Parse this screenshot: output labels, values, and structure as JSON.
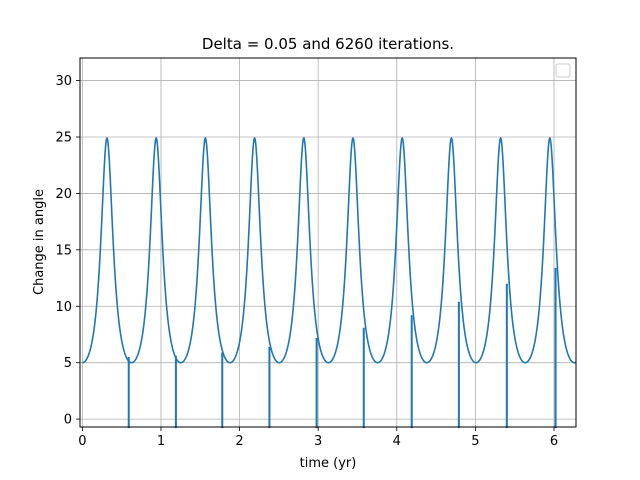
{
  "chart_data": {
    "type": "line",
    "title": "Delta = 0.05 and 6260 iterations.",
    "xlabel": "time (yr)",
    "ylabel": "Change in angle",
    "xlim": [
      -0.03,
      6.28
    ],
    "ylim": [
      -0.7,
      32
    ],
    "x_ticks": [
      0,
      1,
      2,
      3,
      4,
      5,
      6
    ],
    "y_ticks": [
      0,
      5,
      10,
      15,
      20,
      25,
      30
    ],
    "grid": true,
    "legend": "top-right (empty)",
    "series_color": "#1f77b4",
    "series": [
      {
        "period": 0.626,
        "base": 5.0,
        "peak": 24.9,
        "peak_offset": 0.313,
        "spikes": [
          {
            "x": 0.59,
            "y_top": 5.5
          },
          {
            "x": 1.19,
            "y_top": 5.6
          },
          {
            "x": 1.78,
            "y_top": 5.9
          },
          {
            "x": 2.38,
            "y_top": 6.4
          },
          {
            "x": 2.98,
            "y_top": 7.2
          },
          {
            "x": 3.58,
            "y_top": 8.1
          },
          {
            "x": 4.19,
            "y_top": 9.2
          },
          {
            "x": 4.79,
            "y_top": 10.4
          },
          {
            "x": 5.4,
            "y_top": 12.0
          },
          {
            "x": 6.02,
            "y_top": 13.4
          }
        ]
      }
    ]
  }
}
